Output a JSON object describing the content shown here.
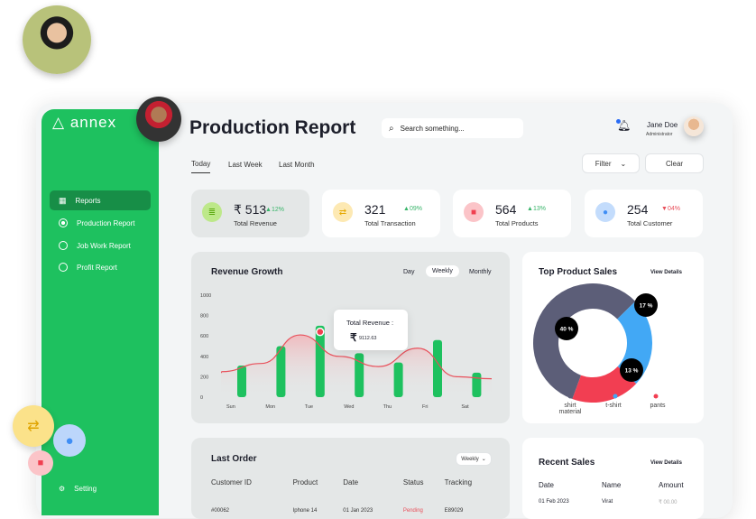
{
  "brand": {
    "logo": "annex"
  },
  "header": {
    "title": "Production Report",
    "search_placeholder": "Search something...",
    "user_name": "Jane Doe",
    "user_role": "Administrator",
    "notification_icon": "bell-icon",
    "filter_label": "Filter",
    "clear_label": "Clear"
  },
  "sidebar": {
    "items": [
      {
        "label": "Reports",
        "icon": "grid-icon",
        "active": true
      },
      {
        "label": "Production Report",
        "icon": "radio-checked-icon"
      },
      {
        "label": "Job Work Report",
        "icon": "radio-icon"
      },
      {
        "label": "Profit Report",
        "icon": "radio-icon"
      }
    ],
    "setting_label": "Setting"
  },
  "tabs": [
    "Today",
    "Last Week",
    "Last Month"
  ],
  "stats": [
    {
      "value": "₹ 513",
      "change": "12%",
      "direction": "up",
      "label": "Total Revenue",
      "color": "#8bd63a"
    },
    {
      "value": "321",
      "change": "09%",
      "direction": "up",
      "label": "Total Transaction",
      "color": "#f8c94a"
    },
    {
      "value": "564",
      "change": "13%",
      "direction": "up",
      "label": "Total Products",
      "color": "#f04050"
    },
    {
      "value": "254",
      "change": "04%",
      "direction": "down",
      "label": "Total Customer",
      "color": "#3f8ef5"
    }
  ],
  "revenue": {
    "title": "Revenue Growth",
    "periods": [
      "Day",
      "Weekly",
      "Monthly"
    ],
    "selected_period": "Weekly",
    "tooltip_label": "Total Revenue :",
    "tooltip_value": "9112.63",
    "tooltip_currency": "₹"
  },
  "chart_data": [
    {
      "type": "bar",
      "categories": [
        "Sun",
        "Mon",
        "Tue",
        "Wed",
        "Thu",
        "Fri",
        "Sat"
      ],
      "values": [
        310,
        500,
        700,
        430,
        340,
        560,
        240
      ],
      "line_values": [
        250,
        330,
        610,
        400,
        300,
        480,
        200
      ],
      "yticks": [
        0,
        200,
        400,
        600,
        800,
        1000
      ],
      "ylim": [
        0,
        1000
      ],
      "bar_color": "#1ec15f",
      "line_color": "#e8505b"
    },
    {
      "type": "pie",
      "title": "Top Product Sales",
      "labels": [
        "shirt material",
        "t-shirt",
        "pants"
      ],
      "values": [
        40,
        17,
        13
      ],
      "colors": [
        "#5c5e78",
        "#42a8f5",
        "#f23e52"
      ]
    }
  ],
  "top_sales": {
    "title": "Top Product Sales",
    "view_details": "View Details",
    "labels": [
      "40 %",
      "17 %",
      "13 %"
    ],
    "legend": [
      "shirt material",
      "t-shirt",
      "pants"
    ]
  },
  "last_order": {
    "title": "Last Order",
    "range": "Weekly",
    "columns": [
      "Customer ID",
      "Product",
      "Date",
      "Status",
      "Tracking"
    ],
    "rows": [
      [
        "#00062",
        "Iphone 14",
        "01 Jan 2023",
        "Pending",
        "E89029"
      ]
    ]
  },
  "recent_sales": {
    "title": "Recent Sales",
    "view_details": "View Details",
    "columns": [
      "Date",
      "Name",
      "Amount"
    ],
    "rows": [
      [
        "01 Feb 2023",
        "Virat",
        "₹ 00.00"
      ]
    ]
  }
}
